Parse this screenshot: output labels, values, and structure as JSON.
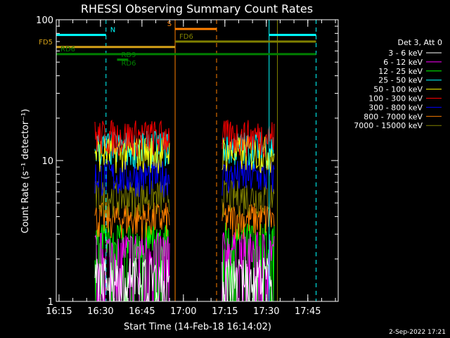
{
  "chart_data": {
    "type": "line",
    "title": "RHESSI Observing Summary Count Rates",
    "xlabel": "Start Time (14-Feb-18 16:14:02)",
    "ylabel": "Count Rate (s⁻¹ detector⁻¹)",
    "y_scale": "log",
    "ylim": [
      1,
      100
    ],
    "y_ticks": [
      "1",
      "10",
      "100"
    ],
    "x_range_minutes": [
      "16:14",
      "17:56"
    ],
    "x_ticks": [
      "16:15",
      "16:30",
      "16:45",
      "17:00",
      "17:15",
      "17:30",
      "17:45"
    ],
    "legend_title": "Det 3, Att 0",
    "legend_position": "right",
    "series": [
      {
        "name": "3 - 6 keV",
        "color": "#ffffff",
        "level": 1.6
      },
      {
        "name": "6 - 12 keV",
        "color": "#ff00ff",
        "level": 2.4
      },
      {
        "name": "12 - 25 keV",
        "color": "#00ff00",
        "level": 2.8
      },
      {
        "name": "25 - 50 keV",
        "color": "#00ffff",
        "level": 12.5
      },
      {
        "name": "50 - 100 keV",
        "color": "#ffff00",
        "level": 11.5
      },
      {
        "name": "100 - 300 keV",
        "color": "#ff0000",
        "level": 15.0
      },
      {
        "name": "300 - 800 keV",
        "color": "#0000ff",
        "level": 7.8
      },
      {
        "name": "800 - 7000 keV",
        "color": "#ff8000",
        "level": 3.9
      },
      {
        "name": "7000 - 15000 keV",
        "color": "#808000",
        "level": 5.6
      }
    ],
    "data_intervals": [
      {
        "start": "16:28",
        "end": "16:55"
      },
      {
        "start": "17:14",
        "end": "17:33"
      }
    ],
    "flag_lines": [
      {
        "label": "N",
        "color": "#00ffff",
        "start": "16:14",
        "end": "16:32",
        "level": 78
      },
      {
        "label": "",
        "color": "#00ffff",
        "start": "17:31",
        "end": "17:48",
        "level": 78
      },
      {
        "label": "S",
        "color": "#ff8000",
        "start": "16:57",
        "end": "17:12",
        "level": 86
      },
      {
        "label": "FD5",
        "color": "#d4a017",
        "start": "16:14",
        "end": "16:57",
        "level": 64
      },
      {
        "label": "FD6",
        "color": "#808000",
        "start": "16:57",
        "end": "17:48",
        "level": 70
      },
      {
        "label": "RD6",
        "color": "#008000",
        "start": "16:14",
        "end": "17:48",
        "level": 57
      },
      {
        "label": "RD9",
        "color": "#008000",
        "start": "16:36",
        "end": "16:40",
        "level": 52
      },
      {
        "label": "RD6",
        "color": "#008000",
        "start": "16:36",
        "end": "16:40",
        "level": 52
      }
    ],
    "vertical_lines": [
      {
        "time": "16:14",
        "color": "#00ffff",
        "style": "solid"
      },
      {
        "time": "16:32",
        "color": "#00ffff",
        "style": "dashed"
      },
      {
        "time": "16:57",
        "color": "#ff8000",
        "style": "solid"
      },
      {
        "time": "17:12",
        "color": "#ff8000",
        "style": "dashed"
      },
      {
        "time": "17:31",
        "color": "#00ffff",
        "style": "solid"
      },
      {
        "time": "17:34",
        "color": "#808000",
        "style": "solid"
      },
      {
        "time": "17:48",
        "color": "#00ffff",
        "style": "dashed"
      }
    ]
  },
  "footer": {
    "date": "2-Sep-2022 17:21"
  }
}
